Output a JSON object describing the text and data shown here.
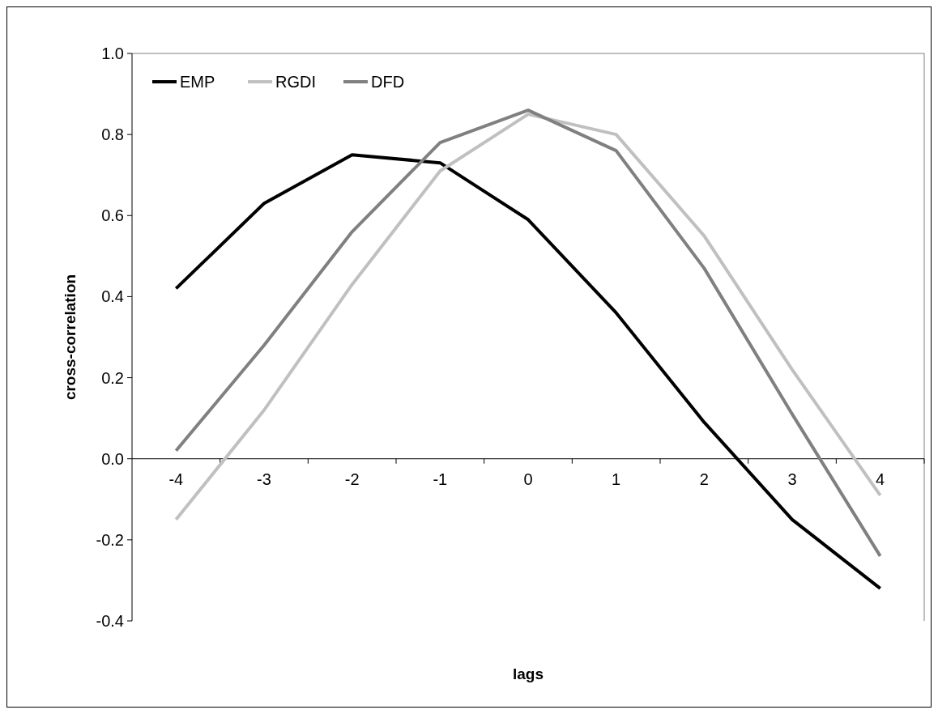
{
  "chart_data": {
    "type": "line",
    "xlabel": "lags",
    "ylabel": "cross-correlation",
    "categories": [
      "-4",
      "-3",
      "-2",
      "-1",
      "0",
      "1",
      "2",
      "3",
      "4"
    ],
    "series": [
      {
        "name": "EMP",
        "color": "#000000",
        "values": [
          0.42,
          0.63,
          0.75,
          0.73,
          0.59,
          0.36,
          0.09,
          -0.15,
          -0.32
        ]
      },
      {
        "name": "RGDI",
        "color": "#c0c0c0",
        "values": [
          -0.15,
          0.12,
          0.43,
          0.71,
          0.85,
          0.8,
          0.55,
          0.22,
          -0.09
        ]
      },
      {
        "name": "DFD",
        "color": "#808080",
        "values": [
          0.02,
          0.28,
          0.56,
          0.78,
          0.86,
          0.76,
          0.47,
          0.11,
          -0.24
        ]
      }
    ],
    "ylim": [
      -0.4,
      1.0
    ],
    "yticks": [
      -0.4,
      -0.2,
      {
        "value": 0,
        "label": "0.0"
      },
      0.2,
      0.4,
      0.6,
      0.8,
      {
        "value": 1,
        "label": "1.0"
      }
    ],
    "grid": false,
    "legend": "top left",
    "marker": "none",
    "line_style": "solid"
  }
}
